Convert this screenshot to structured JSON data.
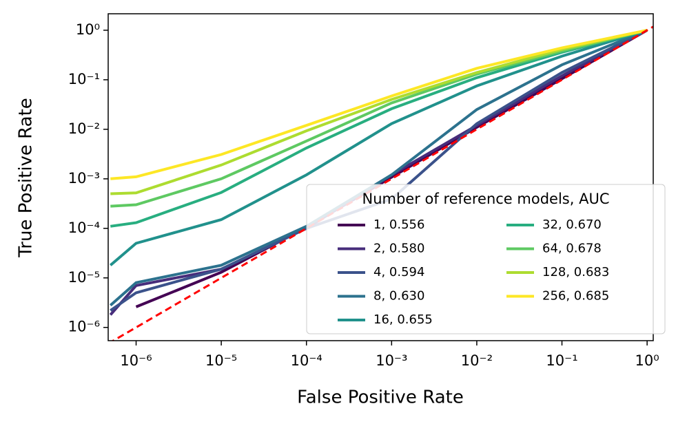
{
  "chart_data": {
    "type": "line",
    "x_label": "False Positive Rate",
    "y_label": "True Positive Rate",
    "xscale": "log",
    "yscale": "log",
    "xlim": [
      4.7e-07,
      1.18
    ],
    "ylim": [
      5.4e-07,
      2.15
    ],
    "xticks": [
      {
        "value": 1e-06,
        "label": "10⁻⁶"
      },
      {
        "value": 1e-05,
        "label": "10⁻⁵"
      },
      {
        "value": 0.0001,
        "label": "10⁻⁴"
      },
      {
        "value": 0.001,
        "label": "10⁻³"
      },
      {
        "value": 0.01,
        "label": "10⁻²"
      },
      {
        "value": 0.1,
        "label": "10⁻¹"
      },
      {
        "value": 1,
        "label": "10⁰"
      }
    ],
    "yticks": [
      {
        "value": 1e-06,
        "label": "10⁻⁶"
      },
      {
        "value": 1e-05,
        "label": "10⁻⁵"
      },
      {
        "value": 0.0001,
        "label": "10⁻⁴"
      },
      {
        "value": 0.001,
        "label": "10⁻³"
      },
      {
        "value": 0.01,
        "label": "10⁻²"
      },
      {
        "value": 0.1,
        "label": "10⁻¹"
      },
      {
        "value": 1,
        "label": "10⁰"
      }
    ],
    "legend_title": "Number of reference models, AUC",
    "x": [
      5e-07,
      1e-06,
      1e-05,
      0.0001,
      0.001,
      0.01,
      0.1,
      1
    ],
    "series": [
      {
        "name": "1, 0.556",
        "color": "#440154",
        "values": [
          null,
          2.6e-06,
          1.3e-05,
          0.000105,
          0.00108,
          0.011,
          0.105,
          1
        ]
      },
      {
        "name": "2, 0.580",
        "color": "#472d7b",
        "values": [
          1.8e-06,
          7e-06,
          1.5e-05,
          0.0001,
          0.0012,
          0.012,
          0.12,
          1
        ]
      },
      {
        "name": "4, 0.594",
        "color": "#3b528b",
        "values": [
          2.2e-06,
          5e-06,
          1.5e-05,
          0.0001,
          0.00039,
          0.013,
          0.14,
          1
        ]
      },
      {
        "name": "8, 0.630",
        "color": "#2c728e",
        "values": [
          2.8e-06,
          8e-06,
          1.8e-05,
          0.00011,
          0.0012,
          0.025,
          0.2,
          1
        ]
      },
      {
        "name": "16, 0.655",
        "color": "#21918c",
        "values": [
          1.8e-05,
          5e-05,
          0.00015,
          0.0012,
          0.013,
          0.075,
          0.3,
          1
        ]
      },
      {
        "name": "32, 0.670",
        "color": "#28ae80",
        "values": [
          0.00011,
          0.00013,
          0.00053,
          0.0042,
          0.026,
          0.11,
          0.36,
          1
        ]
      },
      {
        "name": "64, 0.678",
        "color": "#5ec962",
        "values": [
          0.00028,
          0.0003,
          0.001,
          0.0058,
          0.034,
          0.13,
          0.38,
          1
        ]
      },
      {
        "name": "128, 0.683",
        "color": "#addc30",
        "values": [
          0.0005,
          0.00052,
          0.0019,
          0.0093,
          0.04,
          0.14,
          0.41,
          1
        ]
      },
      {
        "name": "256, 0.685",
        "color": "#fde725",
        "values": [
          0.001,
          0.0011,
          0.0031,
          0.012,
          0.047,
          0.17,
          0.44,
          1
        ]
      }
    ],
    "diagonal_color": "#ff0000"
  }
}
